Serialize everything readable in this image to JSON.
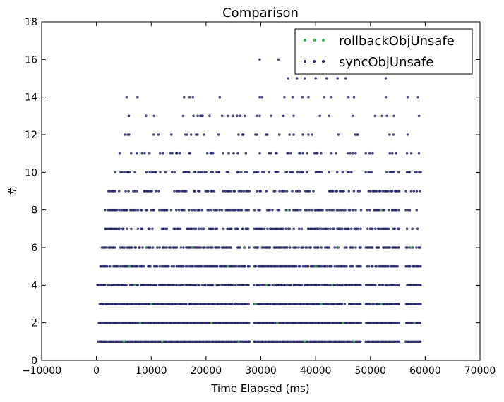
{
  "chart_data": {
    "type": "scatter",
    "title": "Comparison",
    "xlabel": "Time Elapsed (ms)",
    "ylabel": "#",
    "xlim": [
      -10000,
      70000
    ],
    "ylim": [
      0,
      18
    ],
    "xticks": [
      -10000,
      0,
      10000,
      20000,
      30000,
      40000,
      50000,
      60000,
      70000
    ],
    "yticks": [
      0,
      2,
      4,
      6,
      8,
      10,
      12,
      14,
      16,
      18
    ],
    "grid": false,
    "legend_position": "top-right",
    "series": [
      {
        "name": "rollbackObjUnsafe",
        "color": "#4caf50",
        "points": [
          [
            5000,
            1
          ],
          [
            12000,
            1
          ],
          [
            26000,
            1
          ],
          [
            38000,
            1
          ],
          [
            47000,
            1
          ],
          [
            8000,
            2
          ],
          [
            21000,
            2
          ],
          [
            33000,
            2
          ],
          [
            45000,
            2
          ],
          [
            58000,
            2
          ],
          [
            10000,
            3
          ],
          [
            29000,
            3
          ],
          [
            41000,
            3
          ],
          [
            52000,
            3
          ],
          [
            7000,
            4
          ],
          [
            31000,
            4
          ],
          [
            43000,
            4
          ],
          [
            6000,
            5
          ],
          [
            24000,
            5
          ],
          [
            40000,
            5
          ],
          [
            9000,
            6
          ],
          [
            17500,
            6
          ],
          [
            27000,
            6
          ],
          [
            44000,
            6
          ],
          [
            57500,
            6
          ],
          [
            35000,
            8
          ],
          [
            52000,
            8
          ]
        ]
      },
      {
        "name": "syncObjUnsafe",
        "color": "#1a1a5c",
        "segments": [
          [
            0,
            27900
          ],
          [
            28800,
            48300
          ],
          [
            49200,
            55300
          ],
          [
            56500,
            59200
          ]
        ],
        "rows": [
          {
            "y": 1,
            "start": 300,
            "density": 1.0
          },
          {
            "y": 2,
            "start": 500,
            "density": 1.0
          },
          {
            "y": 3,
            "start": 600,
            "density": 0.95
          },
          {
            "y": 4,
            "start": 150,
            "density": 0.85
          },
          {
            "y": 5,
            "start": 500,
            "density": 0.8
          },
          {
            "y": 6,
            "start": 1000,
            "density": 0.72
          },
          {
            "y": 7,
            "start": 1600,
            "density": 0.6
          },
          {
            "y": 8,
            "start": 1600,
            "density": 0.55
          },
          {
            "y": 9,
            "start": 2200,
            "density": 0.48
          },
          {
            "y": 10,
            "start": 3200,
            "density": 0.35
          },
          {
            "y": 11,
            "start": 4200,
            "density": 0.22
          },
          {
            "y": 12,
            "start": 5000,
            "density": 0.14
          },
          {
            "y": 13,
            "start": 5000,
            "density": 0.09
          }
        ],
        "points": [
          [
            5500,
            14
          ],
          [
            7500,
            14
          ],
          [
            16000,
            14
          ],
          [
            17000,
            14
          ],
          [
            17600,
            14
          ],
          [
            22500,
            14
          ],
          [
            29800,
            14
          ],
          [
            30200,
            14
          ],
          [
            34300,
            14
          ],
          [
            35800,
            14
          ],
          [
            37600,
            14
          ],
          [
            38700,
            14
          ],
          [
            41600,
            14
          ],
          [
            42900,
            14
          ],
          [
            46000,
            14
          ],
          [
            47000,
            14
          ],
          [
            52800,
            14
          ],
          [
            56800,
            14
          ],
          [
            58700,
            14
          ],
          [
            35000,
            15
          ],
          [
            36600,
            15
          ],
          [
            38000,
            15
          ],
          [
            40000,
            15
          ],
          [
            42000,
            15
          ],
          [
            44000,
            15
          ],
          [
            45500,
            15
          ],
          [
            52800,
            15
          ],
          [
            29800,
            16
          ],
          [
            33200,
            16
          ]
        ]
      }
    ]
  }
}
